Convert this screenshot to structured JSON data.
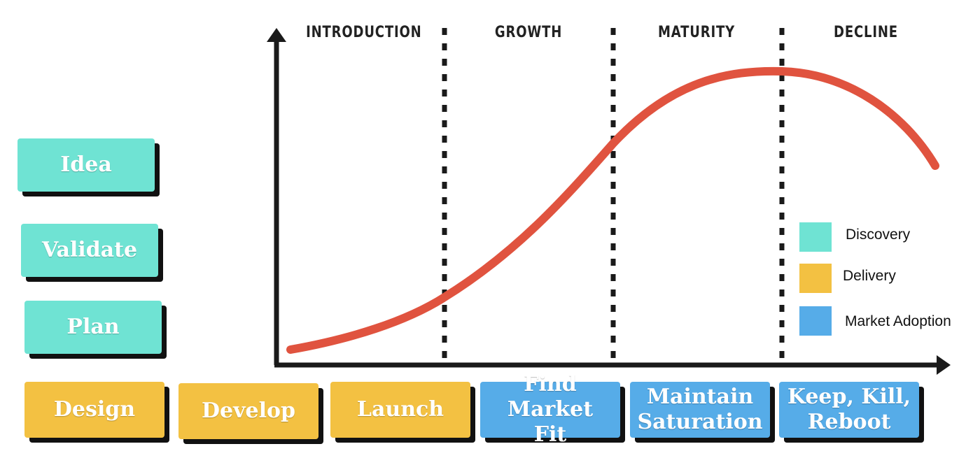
{
  "phases": [
    {
      "label": "INTRODUCTION"
    },
    {
      "label": "GROWTH"
    },
    {
      "label": "MATURITY"
    },
    {
      "label": "DECLINE"
    }
  ],
  "legend": [
    {
      "label": "Discovery",
      "color": "#6fe3d3"
    },
    {
      "label": "Delivery",
      "color": "#f3c142"
    },
    {
      "label": "Market Adoption",
      "color": "#56ace8"
    }
  ],
  "discovery_cards": [
    {
      "label": "Idea"
    },
    {
      "label": "Validate"
    },
    {
      "label": "Plan"
    }
  ],
  "delivery_cards": [
    {
      "label": "Design"
    },
    {
      "label": "Develop"
    },
    {
      "label": "Launch"
    }
  ],
  "adoption_cards": [
    {
      "line1": "Find Market",
      "line2": "Fit"
    },
    {
      "line1": "Maintain",
      "line2": "Saturation"
    },
    {
      "line1": "Keep, Kill,",
      "line2": "Reboot"
    }
  ],
  "colors": {
    "curve": "#e0533f",
    "axis": "#1a1a1a",
    "discovery": "#6fe3d3",
    "delivery": "#f3c142",
    "adoption": "#56ace8"
  }
}
